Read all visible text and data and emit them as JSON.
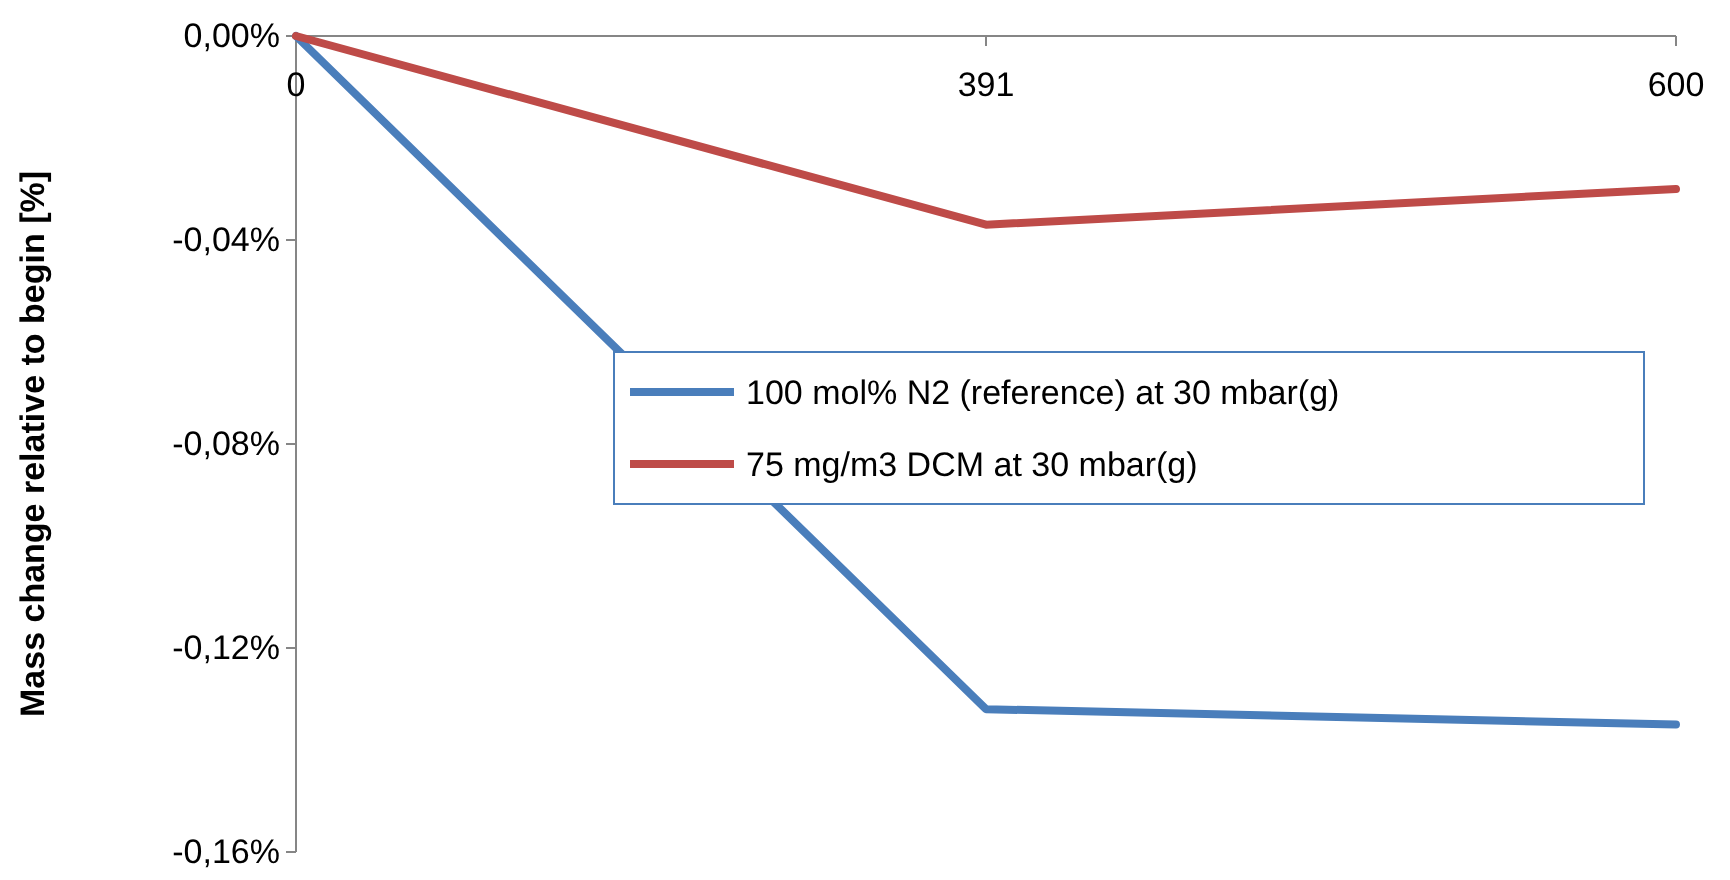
{
  "chart_data": {
    "type": "line",
    "ylabel": "Mass change relative to begin [%]",
    "categories": [
      "0",
      "391",
      "600"
    ],
    "series": [
      {
        "name": "100 mol% N2 (reference) at 30 mbar(g)",
        "color": "#4a7ebb",
        "values": [
          0,
          -0.132,
          -0.135
        ]
      },
      {
        "name": "75 mg/m3 DCM at 30 mbar(g)",
        "color": "#be4b48",
        "values": [
          0,
          -0.037,
          -0.03
        ]
      }
    ],
    "ylim": [
      -0.16,
      0
    ],
    "yticks": [
      {
        "value": 0,
        "label": "0,00%"
      },
      {
        "value": -0.04,
        "label": "-0,04%"
      },
      {
        "value": -0.08,
        "label": "-0,08%"
      },
      {
        "value": -0.12,
        "label": "-0,12%"
      },
      {
        "value": -0.16,
        "label": "-0,16%"
      }
    ],
    "grid": false,
    "legend": "right",
    "marker": "none",
    "line_style": "solid"
  }
}
